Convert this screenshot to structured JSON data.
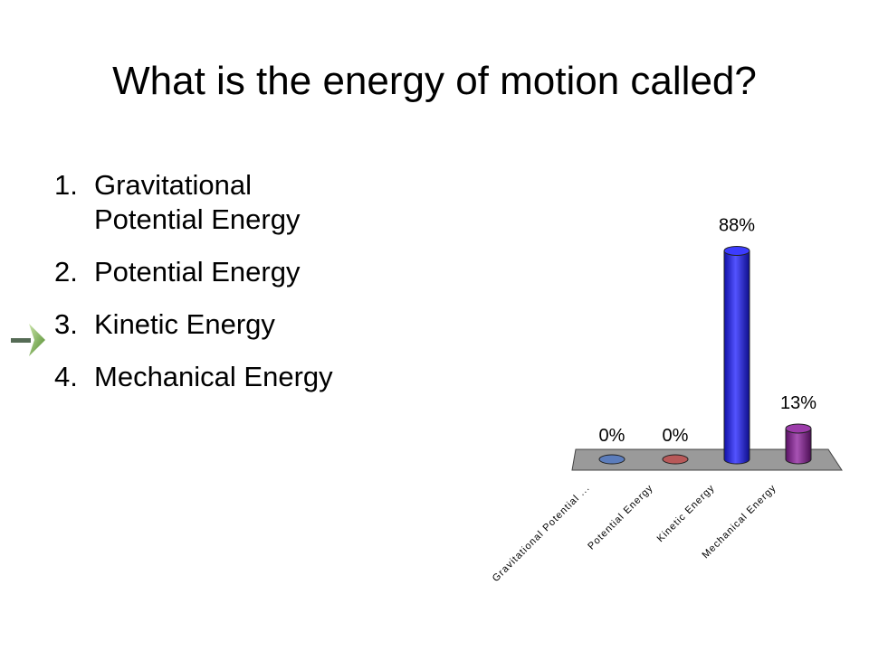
{
  "slide": {
    "title": "What is the energy of motion called?",
    "correct_indicator_icon": "green-arrow-icon"
  },
  "options": [
    {
      "number": "1.",
      "text": "Gravitational Potential Energy",
      "correct": false
    },
    {
      "number": "2.",
      "text": "Potential Energy",
      "correct": false
    },
    {
      "number": "3.",
      "text": "Kinetic Energy",
      "correct": true
    },
    {
      "number": "4.",
      "text": "Mechanical Energy",
      "correct": false
    }
  ],
  "chart_data": {
    "type": "bar",
    "style": "3d-cylinder",
    "categories": [
      "Gravitational Potential ...",
      "Potential Energy",
      "Kinetic Energy",
      "Mechanical Energy"
    ],
    "values": [
      0,
      0,
      88,
      13
    ],
    "data_labels": [
      "0%",
      "0%",
      "88%",
      "13%"
    ],
    "colors": [
      "#4a6fb5",
      "#b04646",
      "#1a1aff",
      "#8b1a9b"
    ],
    "ylim": [
      0,
      100
    ],
    "grid": false,
    "legend": "none"
  }
}
